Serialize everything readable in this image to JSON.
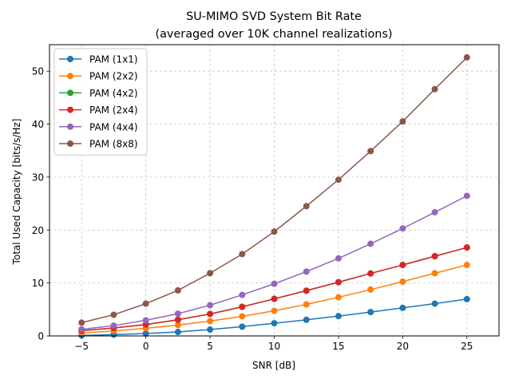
{
  "chart_data": {
    "type": "line",
    "title": "SU-MIMO SVD System Bit Rate",
    "subtitle": "(averaged over 10K channel realizations)",
    "xlabel": "SNR [dB]",
    "ylabel": "Total Used Capacity [bits/s/Hz]",
    "xlim": [
      -7.5,
      27.5
    ],
    "ylim": [
      0,
      55
    ],
    "xticks": [
      -5,
      0,
      5,
      10,
      15,
      20,
      25
    ],
    "yticks": [
      0,
      10,
      20,
      30,
      40,
      50
    ],
    "grid": true,
    "legend_position": "top-left",
    "marker": "circle",
    "x": [
      -5,
      -2.5,
      0,
      2.5,
      5,
      7.5,
      10,
      12.5,
      15,
      17.5,
      20,
      22.5,
      25
    ],
    "series": [
      {
        "name": "PAM (1x1)",
        "color": "#1f77b4",
        "values": [
          0.1,
          0.25,
          0.45,
          0.75,
          1.2,
          1.75,
          2.4,
          3.05,
          3.75,
          4.5,
          5.3,
          6.1,
          6.95
        ]
      },
      {
        "name": "PAM (2x2)",
        "color": "#ff7f0e",
        "values": [
          0.55,
          0.95,
          1.45,
          2.05,
          2.8,
          3.7,
          4.75,
          5.95,
          7.3,
          8.75,
          10.25,
          11.85,
          13.4
        ]
      },
      {
        "name": "PAM (4x2)",
        "color": "#2ca02c",
        "values": [
          1.0,
          1.5,
          2.15,
          3.05,
          4.15,
          5.5,
          7.0,
          8.55,
          10.15,
          11.8,
          13.4,
          15.05,
          16.7
        ]
      },
      {
        "name": "PAM (2x4)",
        "color": "#d62728",
        "values": [
          1.0,
          1.5,
          2.15,
          3.05,
          4.15,
          5.5,
          7.0,
          8.55,
          10.15,
          11.8,
          13.4,
          15.05,
          16.7
        ]
      },
      {
        "name": "PAM (4x4)",
        "color": "#9467bd",
        "values": [
          1.25,
          1.95,
          2.95,
          4.2,
          5.8,
          7.75,
          9.85,
          12.15,
          14.65,
          17.4,
          20.3,
          23.35,
          26.45
        ]
      },
      {
        "name": "PAM (8x8)",
        "color": "#8c564b",
        "values": [
          2.5,
          4.0,
          6.1,
          8.6,
          11.85,
          15.45,
          19.7,
          24.5,
          29.5,
          34.9,
          40.5,
          46.6,
          52.6
        ]
      }
    ]
  }
}
